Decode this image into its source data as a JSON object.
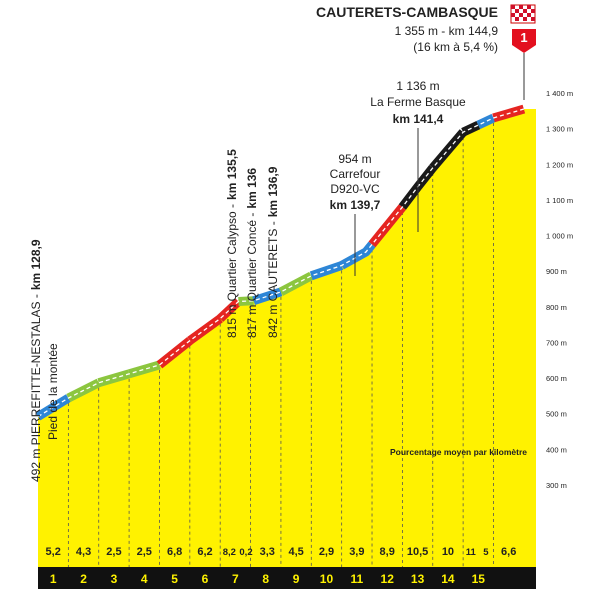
{
  "chart_data": {
    "type": "area",
    "summit": {
      "name": "CAUTERETS-CAMBASQUE",
      "detail": "1 355 m - km 144,9",
      "note": "(16 km à 5,4 %)",
      "category": "1"
    },
    "x": [
      0,
      1,
      2,
      3,
      4,
      5,
      6,
      6.6,
      7.1,
      8,
      9,
      10,
      10.8,
      12,
      12.5,
      13,
      14,
      14.5,
      15,
      16
    ],
    "values": [
      492,
      544,
      587,
      612,
      637,
      705,
      767,
      815,
      817,
      842,
      887,
      916,
      954,
      1080,
      1136,
      1190,
      1290,
      1310,
      1330,
      1355
    ],
    "xlim": [
      0,
      16.4
    ],
    "ylim": [
      300,
      1400
    ],
    "yticks": [
      {
        "value": 300,
        "label": "300 m"
      },
      {
        "value": 400,
        "label": "400 m"
      },
      {
        "value": 500,
        "label": "500 m"
      },
      {
        "value": 600,
        "label": "600 m"
      },
      {
        "value": 700,
        "label": "700 m"
      },
      {
        "value": 800,
        "label": "800 m"
      },
      {
        "value": 900,
        "label": "900 m"
      },
      {
        "value": 1000,
        "label": "1 000 m"
      },
      {
        "value": 1100,
        "label": "1 100 m"
      },
      {
        "value": 1200,
        "label": "1 200 m"
      },
      {
        "value": 1300,
        "label": "1 300 m"
      },
      {
        "value": 1400,
        "label": "1 400 m"
      }
    ],
    "grid": false,
    "color": "#fff200",
    "segments": [
      {
        "start": 0,
        "end": 1,
        "value": 5.2,
        "value_label": "5,2",
        "color": "#2e86d6"
      },
      {
        "start": 1,
        "end": 2,
        "value": 4.3,
        "value_label": "4,3",
        "color": "#8cc63f"
      },
      {
        "start": 2,
        "end": 3,
        "value": 2.5,
        "value_label": "2,5",
        "color": "#8cc63f"
      },
      {
        "start": 3,
        "end": 4,
        "value": 2.5,
        "value_label": "2,5",
        "color": "#8cc63f"
      },
      {
        "start": 4,
        "end": 5,
        "value": 6.8,
        "value_label": "6,8",
        "color": "#e52521"
      },
      {
        "start": 5,
        "end": 6,
        "value": 6.2,
        "value_label": "6,2",
        "color": "#e52521"
      },
      {
        "start": 6,
        "end": 6.6,
        "value": 8.2,
        "value_label": "8,2",
        "color": "#e52521"
      },
      {
        "start": 6.6,
        "end": 7.1,
        "value": 0.2,
        "value_label": "0,2",
        "color": "#8cc63f"
      },
      {
        "start": 7.1,
        "end": 8,
        "value": 3.3,
        "value_label": "3,3",
        "color": "#2e86d6"
      },
      {
        "start": 8,
        "end": 9,
        "value": 4.5,
        "value_label": "4,5",
        "color": "#8cc63f"
      },
      {
        "start": 9,
        "end": 10,
        "value": 2.9,
        "value_label": "2,9",
        "color": "#2e86d6"
      },
      {
        "start": 10,
        "end": 11,
        "value": 3.9,
        "value_label": "3,9",
        "color": "#2e86d6"
      },
      {
        "start": 11,
        "end": 12,
        "value": 8.9,
        "value_label": "8,9",
        "color": "#e52521"
      },
      {
        "start": 12,
        "end": 13,
        "value": 10.5,
        "value_label": "10,5",
        "color": "#1a1a1a"
      },
      {
        "start": 13,
        "end": 14,
        "value": 10,
        "color": "#1a1a1a"
      },
      {
        "start": 14,
        "end": 14.5,
        "value": 11,
        "color": "#1a1a1a"
      },
      {
        "start": 14.5,
        "end": 15,
        "value": 5,
        "color": "#2e86d6"
      },
      {
        "start": 15,
        "end": 16,
        "value": 6.6,
        "value_label": "6,6",
        "color": "#e52521"
      }
    ],
    "km_markers": [
      1,
      2,
      3,
      4,
      5,
      6,
      7,
      8,
      9,
      10,
      11,
      12,
      13,
      14,
      15
    ],
    "annotations": [
      {
        "text": "492 m PIERREFITTE-NESTALAS -",
        "bold": "km 128,9",
        "note": "Pied de la montée"
      },
      {
        "text": "815 m Quartier Calypso -",
        "bold": "km 135,5"
      },
      {
        "text": "817 m Quartier Concé -",
        "bold": "km 136"
      },
      {
        "text": "842 m CAUTERETS -",
        "bold": "km 136,9"
      },
      {
        "lines": [
          "954 m",
          "Carrefour",
          "D920-VC"
        ],
        "bold": "km 139,7"
      },
      {
        "lines": [
          "1 136 m",
          "La Ferme Basque"
        ],
        "bold": "km 141,4"
      }
    ],
    "legend_note": "Pourcentage moyen par kilomètre"
  }
}
